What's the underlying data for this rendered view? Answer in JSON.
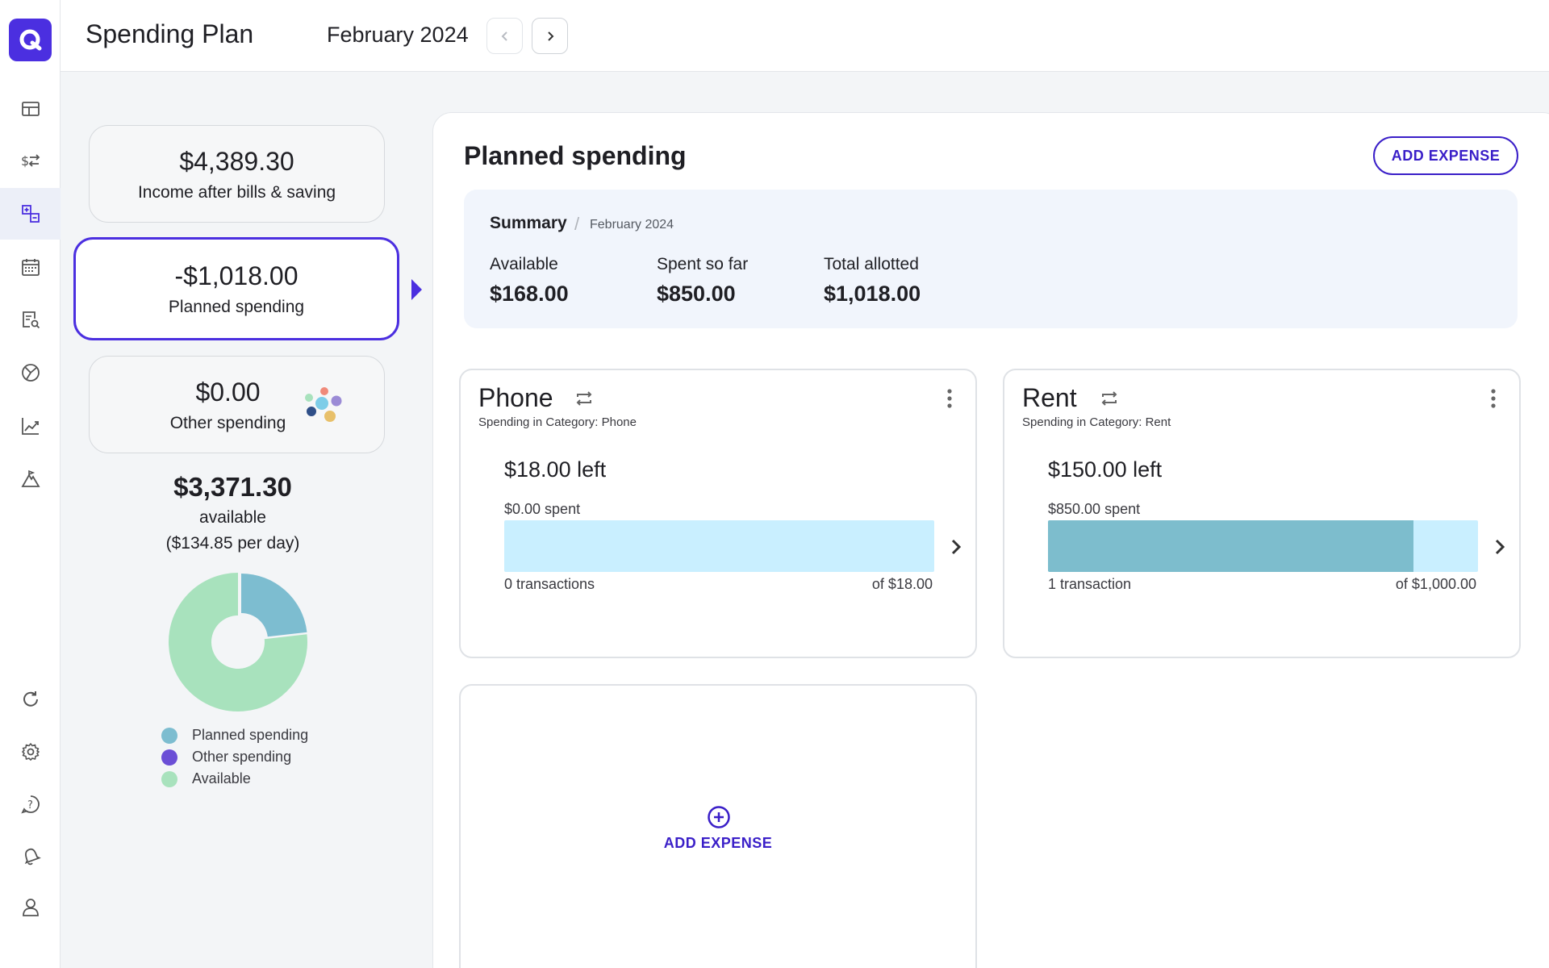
{
  "header": {
    "title": "Spending Plan",
    "month": "February 2024"
  },
  "sidebar": {
    "items": [
      {
        "name": "dashboard-icon"
      },
      {
        "name": "transactions-icon"
      },
      {
        "name": "spending-plan-icon",
        "active": true
      },
      {
        "name": "calendar-icon"
      },
      {
        "name": "reports-icon"
      },
      {
        "name": "investments-icon"
      },
      {
        "name": "trends-icon"
      },
      {
        "name": "goals-icon"
      },
      {
        "name": "refresh-icon"
      },
      {
        "name": "settings-icon"
      },
      {
        "name": "help-icon"
      },
      {
        "name": "notifications-icon"
      },
      {
        "name": "profile-icon"
      }
    ]
  },
  "summary_cards": {
    "income": {
      "amount": "$4,389.30",
      "label": "Income after bills & saving"
    },
    "planned": {
      "amount": "-$1,018.00",
      "label": "Planned spending"
    },
    "other": {
      "amount": "$0.00",
      "label": "Other spending"
    }
  },
  "available": {
    "amount": "$3,371.30",
    "label": "available",
    "per_day": "($134.85 per day)"
  },
  "chart_data": {
    "type": "pie",
    "donut": true,
    "categories": [
      "Planned spending",
      "Other spending",
      "Available"
    ],
    "values": [
      1018.0,
      0.0,
      3371.3
    ],
    "colors": [
      "#7dbdd0",
      "#6b4fd6",
      "#a8e2bd"
    ],
    "legend": "bottom"
  },
  "panel": {
    "title": "Planned spending",
    "add_expense_label": "ADD EXPENSE",
    "summary": {
      "title": "Summary",
      "separator": "/",
      "month": "February 2024",
      "stats": [
        {
          "label": "Available",
          "value": "$168.00"
        },
        {
          "label": "Spent so far",
          "value": "$850.00"
        },
        {
          "label": "Total allotted",
          "value": "$1,018.00"
        }
      ]
    },
    "expenses": [
      {
        "name": "Phone",
        "subtitle": "Spending in Category: Phone",
        "left": "$18.00 left",
        "spent": "$0.00 spent",
        "transactions": "0 transactions",
        "of": "of $18.00",
        "spent_fraction": 0.0
      },
      {
        "name": "Rent",
        "subtitle": "Spending in Category: Rent",
        "left": "$150.00 left",
        "spent": "$850.00 spent",
        "transactions": "1 transaction",
        "of": "of $1,000.00",
        "spent_fraction": 0.85
      }
    ],
    "add_card_label": "ADD EXPENSE"
  },
  "colors": {
    "accent": "#4b2fe0",
    "button_text": "#3a1fc8",
    "bar_track": "#c9efff",
    "bar_fill": "#7dbdcd"
  }
}
